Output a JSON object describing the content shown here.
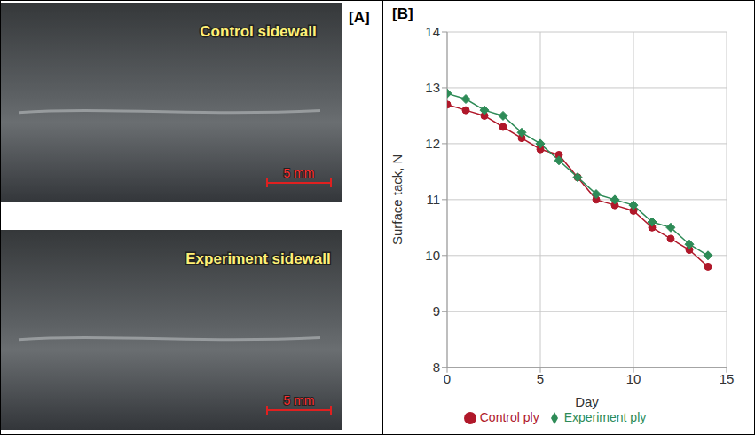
{
  "panel_a": {
    "label": "[A]",
    "images": [
      {
        "label": "Control sidewall",
        "scale_bar": "5 mm"
      },
      {
        "label": "Experiment sidewall",
        "scale_bar": "5 mm"
      }
    ]
  },
  "panel_b_label": "[B]",
  "chart_data": {
    "type": "line",
    "x_label": "Day",
    "y_label": "Surface tack, N",
    "x": [
      0,
      1,
      2,
      3,
      4,
      5,
      6,
      7,
      8,
      9,
      10,
      11,
      12,
      13,
      14
    ],
    "series": [
      {
        "name": "Control ply",
        "color": "#b0182a",
        "marker": "circle",
        "line_style": "solid",
        "values": [
          12.7,
          12.6,
          12.5,
          12.3,
          12.1,
          11.9,
          11.8,
          11.4,
          11.0,
          10.9,
          10.8,
          10.5,
          10.3,
          10.1,
          9.8
        ]
      },
      {
        "name": "Experiment ply",
        "color": "#2e8b57",
        "marker": "diamond",
        "line_style": "solid",
        "values": [
          12.9,
          12.8,
          12.6,
          12.5,
          12.2,
          12.0,
          11.7,
          11.4,
          11.1,
          11.0,
          10.9,
          10.6,
          10.5,
          10.2,
          10.0
        ]
      }
    ],
    "xlim": [
      0,
      15
    ],
    "xticks": [
      0,
      5,
      10,
      15
    ],
    "ylim": [
      8,
      14
    ],
    "yticks": [
      8,
      9,
      10,
      11,
      12,
      13,
      14
    ],
    "grid": true,
    "legend": "bottom"
  }
}
